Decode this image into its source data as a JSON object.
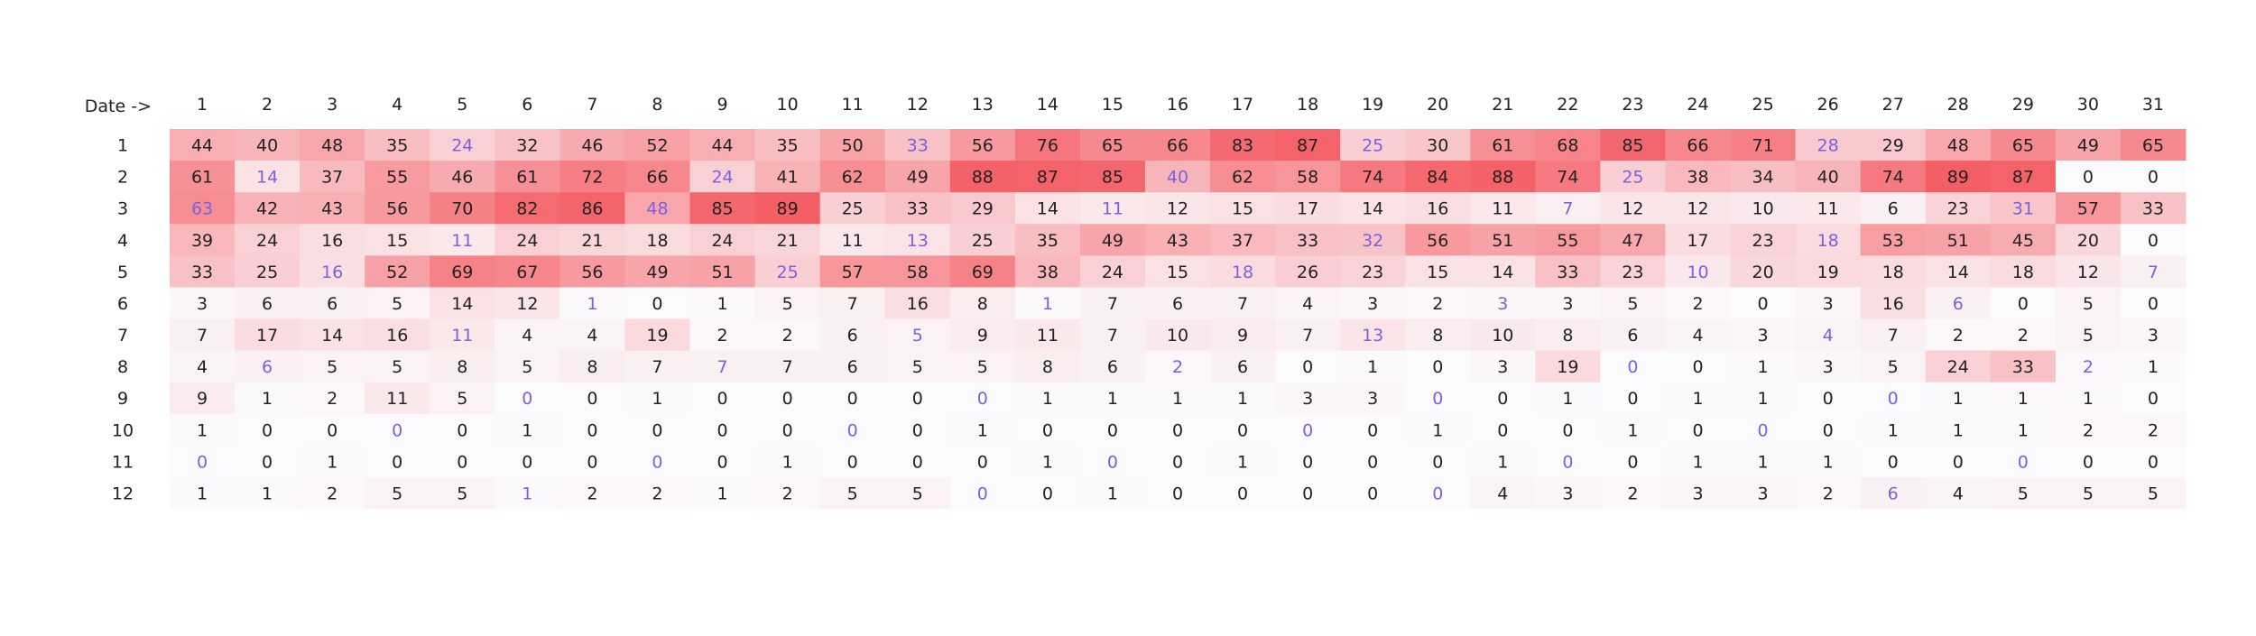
{
  "chart_data": {
    "type": "heatmap",
    "corner_label": "Date ->",
    "x": [
      "1",
      "2",
      "3",
      "4",
      "5",
      "6",
      "7",
      "8",
      "9",
      "10",
      "11",
      "12",
      "13",
      "14",
      "15",
      "16",
      "17",
      "18",
      "19",
      "20",
      "21",
      "22",
      "23",
      "24",
      "25",
      "26",
      "27",
      "28",
      "29",
      "30",
      "31"
    ],
    "y": [
      "1",
      "2",
      "3",
      "4",
      "5",
      "6",
      "7",
      "8",
      "9",
      "10",
      "11",
      "12"
    ],
    "z": [
      [
        44,
        40,
        48,
        35,
        24,
        32,
        46,
        52,
        44,
        35,
        50,
        33,
        56,
        76,
        65,
        66,
        83,
        87,
        25,
        30,
        61,
        68,
        85,
        66,
        71,
        28,
        29,
        48,
        65,
        49,
        65
      ],
      [
        61,
        14,
        37,
        55,
        46,
        61,
        72,
        66,
        24,
        41,
        62,
        49,
        88,
        87,
        85,
        40,
        62,
        58,
        74,
        84,
        88,
        74,
        25,
        38,
        34,
        40,
        74,
        89,
        87,
        0,
        0
      ],
      [
        63,
        42,
        43,
        56,
        70,
        82,
        86,
        48,
        85,
        89,
        25,
        33,
        29,
        14,
        11,
        12,
        15,
        17,
        14,
        16,
        11,
        7,
        12,
        12,
        10,
        11,
        6,
        23,
        31,
        57,
        33
      ],
      [
        39,
        24,
        16,
        15,
        11,
        24,
        21,
        18,
        24,
        21,
        11,
        13,
        25,
        35,
        49,
        43,
        37,
        33,
        32,
        56,
        51,
        55,
        47,
        17,
        23,
        18,
        53,
        51,
        45,
        20,
        0
      ],
      [
        33,
        25,
        16,
        52,
        69,
        67,
        56,
        49,
        51,
        25,
        57,
        58,
        69,
        38,
        24,
        15,
        18,
        26,
        23,
        15,
        14,
        33,
        23,
        10,
        20,
        19,
        18,
        14,
        18,
        12,
        7
      ],
      [
        3,
        6,
        6,
        5,
        14,
        12,
        1,
        0,
        1,
        5,
        7,
        16,
        8,
        1,
        7,
        6,
        7,
        4,
        3,
        2,
        3,
        3,
        5,
        2,
        0,
        3,
        16,
        6,
        0,
        5,
        0
      ],
      [
        7,
        17,
        14,
        16,
        11,
        4,
        4,
        19,
        2,
        2,
        6,
        5,
        9,
        11,
        7,
        10,
        9,
        7,
        13,
        8,
        10,
        8,
        6,
        4,
        3,
        4,
        7,
        2,
        2,
        5,
        3
      ],
      [
        4,
        6,
        5,
        5,
        8,
        5,
        8,
        7,
        7,
        7,
        6,
        5,
        5,
        8,
        6,
        2,
        6,
        0,
        1,
        0,
        3,
        19,
        0,
        0,
        1,
        3,
        5,
        24,
        33,
        2,
        1
      ],
      [
        9,
        1,
        2,
        11,
        5,
        0,
        0,
        1,
        0,
        0,
        0,
        0,
        0,
        1,
        1,
        1,
        1,
        3,
        3,
        0,
        0,
        1,
        0,
        1,
        1,
        0,
        0,
        1,
        1,
        1,
        0
      ],
      [
        1,
        0,
        0,
        0,
        0,
        1,
        0,
        0,
        0,
        0,
        0,
        0,
        1,
        0,
        0,
        0,
        0,
        0,
        0,
        1,
        0,
        0,
        1,
        0,
        0,
        0,
        1,
        1,
        1,
        2,
        2
      ],
      [
        0,
        0,
        1,
        0,
        0,
        0,
        0,
        0,
        0,
        1,
        0,
        0,
        0,
        1,
        0,
        0,
        1,
        0,
        0,
        0,
        1,
        0,
        0,
        1,
        1,
        1,
        0,
        0,
        0,
        0,
        0
      ],
      [
        1,
        1,
        2,
        5,
        5,
        1,
        2,
        2,
        1,
        2,
        5,
        5,
        0,
        0,
        1,
        0,
        0,
        0,
        0,
        0,
        4,
        3,
        2,
        3,
        3,
        2,
        6,
        4,
        5,
        5,
        5
      ]
    ],
    "highlighted_cells": [
      [
        0,
        4
      ],
      [
        0,
        11
      ],
      [
        0,
        18
      ],
      [
        0,
        25
      ],
      [
        1,
        1
      ],
      [
        1,
        8
      ],
      [
        1,
        15
      ],
      [
        1,
        22
      ],
      [
        2,
        0
      ],
      [
        2,
        7
      ],
      [
        2,
        14
      ],
      [
        2,
        21
      ],
      [
        2,
        28
      ],
      [
        3,
        4
      ],
      [
        3,
        11
      ],
      [
        3,
        18
      ],
      [
        3,
        25
      ],
      [
        4,
        2
      ],
      [
        4,
        9
      ],
      [
        4,
        16
      ],
      [
        4,
        23
      ],
      [
        4,
        30
      ],
      [
        5,
        6
      ],
      [
        5,
        13
      ],
      [
        5,
        20
      ],
      [
        5,
        27
      ],
      [
        6,
        4
      ],
      [
        6,
        11
      ],
      [
        6,
        18
      ],
      [
        6,
        25
      ],
      [
        7,
        1
      ],
      [
        7,
        8
      ],
      [
        7,
        15
      ],
      [
        7,
        22
      ],
      [
        7,
        29
      ],
      [
        8,
        5
      ],
      [
        8,
        12
      ],
      [
        8,
        19
      ],
      [
        8,
        26
      ],
      [
        9,
        3
      ],
      [
        9,
        10
      ],
      [
        9,
        17
      ],
      [
        9,
        24
      ],
      [
        10,
        0
      ],
      [
        10,
        7
      ],
      [
        10,
        14
      ],
      [
        10,
        21
      ],
      [
        10,
        28
      ],
      [
        11,
        5
      ],
      [
        11,
        12
      ],
      [
        11,
        19
      ],
      [
        11,
        26
      ]
    ],
    "colors": {
      "scale_low": "#fbfbfd",
      "scale_high": "#f45f66",
      "text": "#222222",
      "highlight_text": "#7b61e0"
    },
    "zmin": 0,
    "zmax": 89
  }
}
